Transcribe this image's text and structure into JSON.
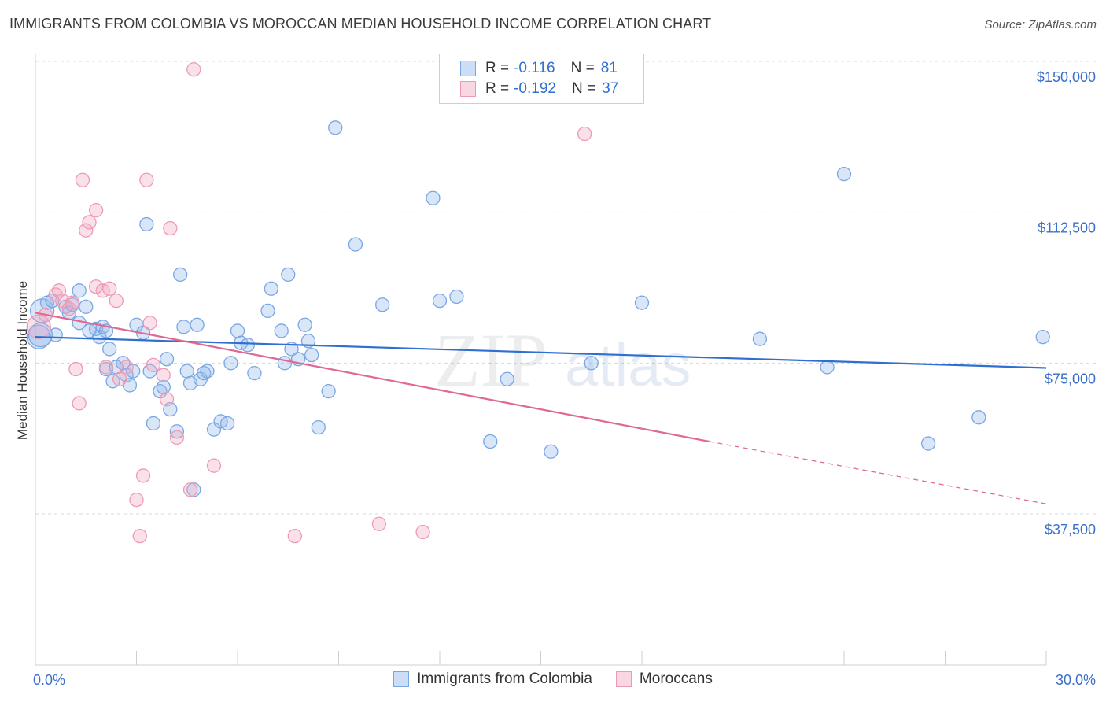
{
  "title": "IMMIGRANTS FROM COLOMBIA VS MOROCCAN MEDIAN HOUSEHOLD INCOME CORRELATION CHART",
  "source": "Source: ZipAtlas.com",
  "watermark": {
    "zip": "ZIP",
    "atlas": "atlas"
  },
  "legend": {
    "rows": [
      {
        "r_label": "R =",
        "r_value": "-0.116",
        "n_label": "N =",
        "n_value": "81",
        "color": "#8fb6ea"
      },
      {
        "r_label": "R =",
        "r_value": "-0.192",
        "n_label": "N =",
        "n_value": "37",
        "color": "#f2a6bf"
      }
    ]
  },
  "bottom_legend": [
    {
      "label": "Immigrants from Colombia",
      "color": "#8fb6ea"
    },
    {
      "label": "Moroccans",
      "color": "#f2a6bf"
    }
  ],
  "chart_data": {
    "type": "scatter",
    "title": "IMMIGRANTS FROM COLOMBIA VS MOROCCAN MEDIAN HOUSEHOLD INCOME CORRELATION CHART",
    "xlabel": "",
    "ylabel": "Median Household Income",
    "xlim": [
      0,
      30
    ],
    "ylim": [
      0,
      155000
    ],
    "x_tick_labels": [
      "0.0%",
      "30.0%"
    ],
    "y_ticks": [
      37500,
      75000,
      112500,
      150000
    ],
    "y_tick_labels": [
      "$37,500",
      "$75,000",
      "$112,500",
      "$150,000"
    ],
    "series": [
      {
        "name": "Immigrants from Colombia",
        "color": "#4f8ee0",
        "fill": "rgba(143,182,234,0.35)",
        "trend": {
          "x0": 0,
          "y0": 81500,
          "x1": 30,
          "y1": 73800,
          "dashed_from": null
        },
        "points": [
          [
            0.1,
            81500
          ],
          [
            0.2,
            88000
          ],
          [
            0.35,
            90000
          ],
          [
            0.5,
            90500
          ],
          [
            0.6,
            82000
          ],
          [
            0.9,
            89000
          ],
          [
            1.0,
            87500
          ],
          [
            1.1,
            89500
          ],
          [
            1.3,
            85000
          ],
          [
            1.3,
            93000
          ],
          [
            1.5,
            89000
          ],
          [
            1.6,
            83000
          ],
          [
            1.8,
            83500
          ],
          [
            1.9,
            81500
          ],
          [
            2.0,
            84000
          ],
          [
            2.1,
            83000
          ],
          [
            2.1,
            73500
          ],
          [
            2.2,
            78500
          ],
          [
            2.3,
            70500
          ],
          [
            2.4,
            74000
          ],
          [
            2.6,
            75000
          ],
          [
            2.7,
            72000
          ],
          [
            2.8,
            69500
          ],
          [
            2.9,
            73000
          ],
          [
            3.0,
            84500
          ],
          [
            3.2,
            82500
          ],
          [
            3.4,
            73000
          ],
          [
            3.5,
            60000
          ],
          [
            3.7,
            68000
          ],
          [
            3.8,
            69000
          ],
          [
            3.9,
            76000
          ],
          [
            4.0,
            63500
          ],
          [
            4.2,
            58000
          ],
          [
            4.3,
            97000
          ],
          [
            4.4,
            84000
          ],
          [
            4.5,
            73000
          ],
          [
            4.6,
            70000
          ],
          [
            4.7,
            43500
          ],
          [
            4.8,
            84500
          ],
          [
            4.9,
            71000
          ],
          [
            5.0,
            72500
          ],
          [
            5.1,
            73000
          ],
          [
            5.3,
            58500
          ],
          [
            5.5,
            60500
          ],
          [
            5.7,
            60000
          ],
          [
            5.8,
            75000
          ],
          [
            6.0,
            83000
          ],
          [
            6.1,
            80000
          ],
          [
            6.3,
            79500
          ],
          [
            6.5,
            72500
          ],
          [
            6.9,
            88000
          ],
          [
            7.0,
            93500
          ],
          [
            7.3,
            83000
          ],
          [
            7.4,
            75000
          ],
          [
            7.6,
            78500
          ],
          [
            7.8,
            76000
          ],
          [
            8.0,
            84500
          ],
          [
            8.1,
            80500
          ],
          [
            8.2,
            77000
          ],
          [
            8.4,
            59000
          ],
          [
            8.7,
            68000
          ],
          [
            8.9,
            133500
          ],
          [
            9.5,
            104500
          ],
          [
            11.8,
            116000
          ],
          [
            12.0,
            90500
          ],
          [
            12.5,
            91500
          ],
          [
            13.5,
            55500
          ],
          [
            14.0,
            71000
          ],
          [
            15.3,
            53000
          ],
          [
            16.5,
            75000
          ],
          [
            18.0,
            90000
          ],
          [
            21.5,
            81000
          ],
          [
            23.5,
            74000
          ],
          [
            24.0,
            122000
          ],
          [
            26.5,
            55000
          ],
          [
            28.0,
            61500
          ],
          [
            29.9,
            81500
          ],
          [
            3.3,
            109500
          ],
          [
            7.5,
            97000
          ],
          [
            10.3,
            89500
          ],
          [
            0.15,
            82000
          ]
        ]
      },
      {
        "name": "Moroccans",
        "color": "#e8779c",
        "fill": "rgba(242,166,191,0.35)",
        "trend": {
          "x0": 0,
          "y0": 87500,
          "x1": 20,
          "y1": 55500,
          "x2": 30,
          "y2": 40000,
          "dashed_from": 20
        },
        "points": [
          [
            0.1,
            84000
          ],
          [
            0.3,
            87000
          ],
          [
            0.6,
            92000
          ],
          [
            0.7,
            93000
          ],
          [
            0.8,
            90500
          ],
          [
            1.0,
            88500
          ],
          [
            1.1,
            90000
          ],
          [
            1.2,
            73500
          ],
          [
            1.3,
            65000
          ],
          [
            1.4,
            120500
          ],
          [
            1.5,
            108000
          ],
          [
            1.6,
            110000
          ],
          [
            1.8,
            113000
          ],
          [
            2.0,
            93000
          ],
          [
            2.1,
            74000
          ],
          [
            2.2,
            93500
          ],
          [
            2.4,
            90500
          ],
          [
            2.5,
            71000
          ],
          [
            2.7,
            74000
          ],
          [
            3.0,
            41000
          ],
          [
            3.1,
            32000
          ],
          [
            3.2,
            47000
          ],
          [
            3.3,
            120500
          ],
          [
            3.4,
            85000
          ],
          [
            3.8,
            72000
          ],
          [
            3.9,
            66000
          ],
          [
            4.0,
            108500
          ],
          [
            4.2,
            56500
          ],
          [
            4.6,
            43500
          ],
          [
            4.7,
            148000
          ],
          [
            5.3,
            49500
          ],
          [
            7.7,
            32000
          ],
          [
            10.2,
            35000
          ],
          [
            11.5,
            33000
          ],
          [
            16.3,
            132000
          ],
          [
            3.5,
            74500
          ],
          [
            1.8,
            94000
          ]
        ]
      }
    ]
  }
}
